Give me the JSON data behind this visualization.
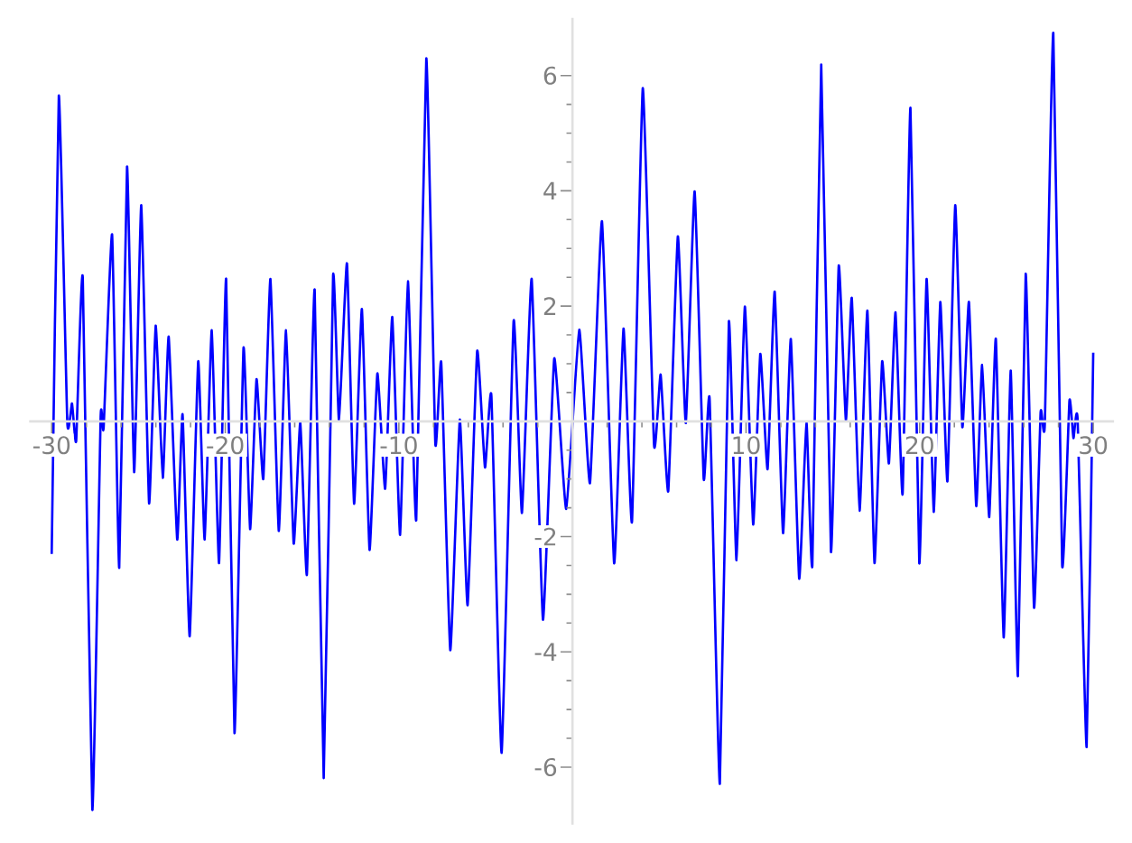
{
  "chart_data": {
    "type": "line",
    "x": [
      -30,
      -29.59,
      -29.1,
      -28.83,
      -28.59,
      -28.21,
      -27.66,
      -27.18,
      -27.01,
      -26.52,
      -26.11,
      -25.66,
      -25.25,
      -24.84,
      -24.39,
      -24.01,
      -23.6,
      -23.26,
      -22.77,
      -22.46,
      -22.05,
      -21.56,
      -21.19,
      -20.78,
      -20.36,
      -19.95,
      -19.47,
      -18.95,
      -18.57,
      -18.2,
      -17.81,
      -17.4,
      -16.92,
      -16.5,
      -16.06,
      -15.68,
      -15.3,
      -14.85,
      -14.33,
      -13.79,
      -13.45,
      -12.99,
      -12.58,
      -12.13,
      -11.69,
      -11.24,
      -10.79,
      -10.38,
      -9.93,
      -9.48,
      -9.0,
      -8.42,
      -7.9,
      -7.56,
      -7.04,
      -6.49,
      -6.04,
      -5.49,
      -5.04,
      -4.67,
      -4.08,
      -3.39,
      -2.91,
      -2.35,
      -1.7,
      -1.05,
      -0.36,
      0.39,
      1.01,
      1.7,
      2.4,
      2.94,
      3.43,
      4.05,
      4.7,
      5.08,
      5.52,
      6.07,
      6.53,
      7.04,
      7.56,
      7.9,
      8.49,
      9.01,
      9.45,
      9.93,
      10.41,
      10.82,
      11.24,
      11.65,
      12.13,
      12.58,
      13.06,
      13.48,
      13.82,
      14.33,
      14.89,
      15.34,
      15.75,
      16.09,
      16.54,
      16.99,
      17.4,
      17.84,
      18.23,
      18.61,
      19.02,
      19.47,
      19.98,
      20.4,
      20.81,
      21.19,
      21.6,
      22.05,
      22.46,
      22.84,
      23.26,
      23.6,
      24.01,
      24.39,
      24.84,
      25.25,
      25.66,
      26.11,
      26.59,
      26.97,
      27.21,
      27.7,
      28.21,
      28.63,
      28.86,
      29.1,
      29.62,
      30
    ],
    "series": [
      {
        "color": "#0000ff",
        "values": [
          -2.3,
          5.65,
          -0.02,
          0.31,
          -0.34,
          2.49,
          -6.74,
          0.07,
          -0.12,
          3.24,
          -2.54,
          4.42,
          -0.88,
          3.75,
          -1.42,
          1.66,
          -0.98,
          1.47,
          -2.05,
          0.12,
          -3.73,
          1.04,
          -2.05,
          1.58,
          -2.46,
          2.47,
          -5.41,
          1.27,
          -1.87,
          0.73,
          -1.0,
          2.47,
          -1.9,
          1.58,
          -2.12,
          -0.02,
          -2.66,
          2.28,
          -6.19,
          2.52,
          0.02,
          2.74,
          -1.43,
          1.95,
          -2.23,
          0.83,
          -1.17,
          1.81,
          -1.97,
          2.43,
          -1.71,
          6.3,
          -0.38,
          1.02,
          -3.97,
          0.03,
          -3.19,
          1.22,
          -0.8,
          0.44,
          -5.75,
          1.74,
          -1.59,
          2.47,
          -3.44,
          1.09,
          -1.52,
          1.59,
          -1.07,
          3.47,
          -2.46,
          1.61,
          -1.74,
          5.78,
          -0.41,
          0.81,
          -1.21,
          3.21,
          -0.03,
          3.99,
          -1.0,
          0.39,
          -6.29,
          1.73,
          -2.41,
          1.99,
          -1.79,
          1.17,
          -0.83,
          2.25,
          -1.94,
          1.43,
          -2.73,
          -0.02,
          -2.49,
          6.19,
          -2.26,
          2.7,
          0.02,
          2.14,
          -1.55,
          1.92,
          -2.46,
          1.04,
          -0.73,
          1.89,
          -1.26,
          5.44,
          -2.46,
          2.47,
          -1.57,
          2.07,
          -1.04,
          3.75,
          -0.1,
          2.07,
          -1.47,
          0.98,
          -1.66,
          1.43,
          -3.75,
          0.88,
          -4.42,
          2.56,
          -3.23,
          0.16,
          -0.05,
          6.74,
          -2.49,
          0.36,
          -0.29,
          0.03,
          -5.65,
          1.19
        ]
      }
    ],
    "xlim": [
      -31.3,
      31.2
    ],
    "ylim": [
      -7,
      7
    ],
    "xticks": [
      -30,
      {
        "value": -28,
        "label": null
      },
      {
        "value": -26,
        "label": null
      },
      {
        "value": -24,
        "label": null
      },
      {
        "value": -22,
        "label": null
      },
      -20,
      {
        "value": -18,
        "label": null
      },
      {
        "value": -16,
        "label": null
      },
      {
        "value": -14,
        "label": null
      },
      {
        "value": -12,
        "label": null
      },
      -10,
      {
        "value": -8,
        "label": null
      },
      {
        "value": -6,
        "label": null
      },
      {
        "value": -4,
        "label": null
      },
      {
        "value": -2,
        "label": null
      },
      {
        "value": 2,
        "label": null
      },
      {
        "value": 4,
        "label": null
      },
      {
        "value": 6,
        "label": null
      },
      {
        "value": 8,
        "label": null
      },
      10,
      {
        "value": 12,
        "label": null
      },
      {
        "value": 14,
        "label": null
      },
      {
        "value": 16,
        "label": null
      },
      {
        "value": 18,
        "label": null
      },
      20,
      {
        "value": 22,
        "label": null
      },
      {
        "value": 24,
        "label": null
      },
      {
        "value": 26,
        "label": null
      },
      {
        "value": 28,
        "label": null
      },
      30
    ],
    "yticks": [
      -6,
      {
        "value": -5.5,
        "label": null
      },
      {
        "value": -5,
        "label": null
      },
      {
        "value": -4.5,
        "label": null
      },
      -4,
      {
        "value": -3.5,
        "label": null
      },
      {
        "value": -3,
        "label": null
      },
      {
        "value": -2.5,
        "label": null
      },
      -2,
      {
        "value": -1.5,
        "label": null
      },
      {
        "value": -1,
        "label": null
      },
      {
        "value": -0.5,
        "label": null
      },
      {
        "value": 0.5,
        "label": null
      },
      {
        "value": 1,
        "label": null
      },
      {
        "value": 1.5,
        "label": null
      },
      2,
      {
        "value": 2.5,
        "label": null
      },
      {
        "value": 3,
        "label": null
      },
      {
        "value": 3.5,
        "label": null
      },
      4,
      {
        "value": 4.5,
        "label": null
      },
      {
        "value": 5,
        "label": null
      },
      {
        "value": 5.5,
        "label": null
      },
      6
    ]
  }
}
